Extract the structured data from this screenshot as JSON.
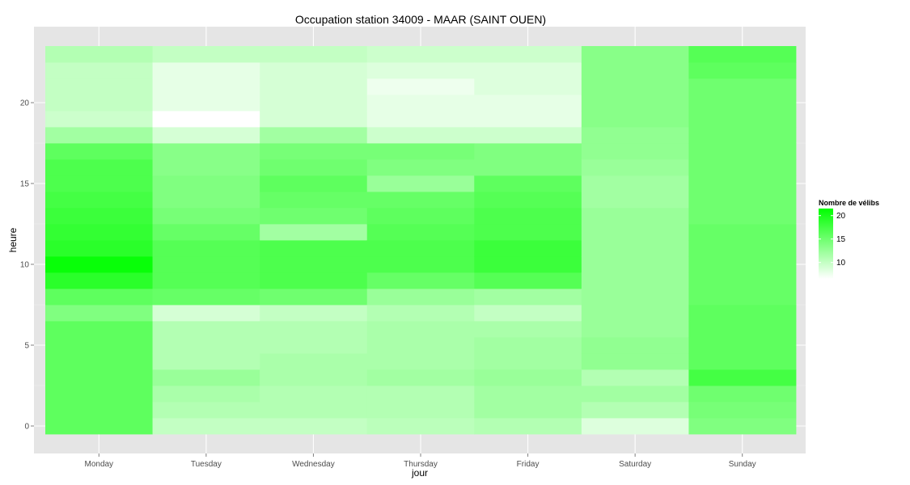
{
  "chart_data": {
    "type": "heatmap",
    "title": "Occupation station 34009 - MAAR (SAINT OUEN)",
    "xlabel": "jour",
    "ylabel": "heure",
    "x_categories": [
      "Monday",
      "Tuesday",
      "Wednesday",
      "Thursday",
      "Friday",
      "Saturday",
      "Sunday"
    ],
    "y_ticks": [
      0,
      5,
      10,
      15,
      20
    ],
    "y_range": [
      -0.5,
      23.5
    ],
    "grid": true,
    "legend": {
      "title": "Nombre de vélibs",
      "ticks": [
        10,
        15,
        20
      ],
      "range": [
        6.5,
        21.5
      ],
      "low_color": "#ffffff",
      "high_color": "#00ff00",
      "placement": "right"
    },
    "colors": {
      "panel_background": "#e5e5e5",
      "grid": "#ffffff"
    },
    "values": {
      "Monday": [
        16,
        16,
        16,
        16,
        16,
        16,
        16,
        14,
        16,
        19,
        21,
        19,
        18.5,
        18,
        17.5,
        17,
        17,
        16,
        12,
        9.5,
        10,
        10,
        10,
        11
      ],
      "Tuesday": [
        10,
        11,
        11.5,
        12.5,
        11,
        11,
        11,
        9,
        15.5,
        16.5,
        16.5,
        16.5,
        15.5,
        14.5,
        14,
        14,
        13.5,
        13.5,
        9,
        6.5,
        8,
        8,
        8,
        10
      ],
      "Wednesday": [
        10,
        11,
        11,
        11.5,
        11.5,
        11,
        11,
        10,
        15,
        17,
        17,
        17,
        12,
        15,
        15.5,
        16,
        15,
        14.5,
        12,
        9,
        9,
        9,
        9,
        10
      ],
      "Thursday": [
        10.5,
        11,
        11,
        12,
        11.5,
        11.5,
        11.5,
        11,
        12.5,
        15.5,
        17,
        17,
        16.5,
        16,
        15.5,
        12.5,
        14,
        14.5,
        9.5,
        8,
        8,
        7.5,
        8.5,
        9.5
      ],
      "Friday": [
        11,
        12,
        12,
        12.5,
        12,
        12,
        11.5,
        10,
        12,
        16.5,
        18,
        18,
        17,
        17,
        16.5,
        16,
        14,
        14,
        9.5,
        8,
        8,
        8.5,
        8.5,
        9.5
      ],
      "Saturday": [
        8.5,
        11,
        12,
        11,
        13,
        13,
        12.5,
        12.5,
        12.5,
        12.5,
        12.5,
        12.5,
        12.5,
        12.5,
        12,
        12,
        12.5,
        13,
        13,
        13.5,
        13.5,
        13.5,
        13.5,
        13.5
      ],
      "Sunday": [
        14,
        14.5,
        15,
        17.5,
        16,
        16,
        16,
        16,
        15.5,
        15.5,
        15.5,
        15.5,
        15.5,
        15,
        15,
        15,
        15,
        15,
        15,
        15,
        15,
        15,
        16,
        16.5
      ]
    }
  }
}
